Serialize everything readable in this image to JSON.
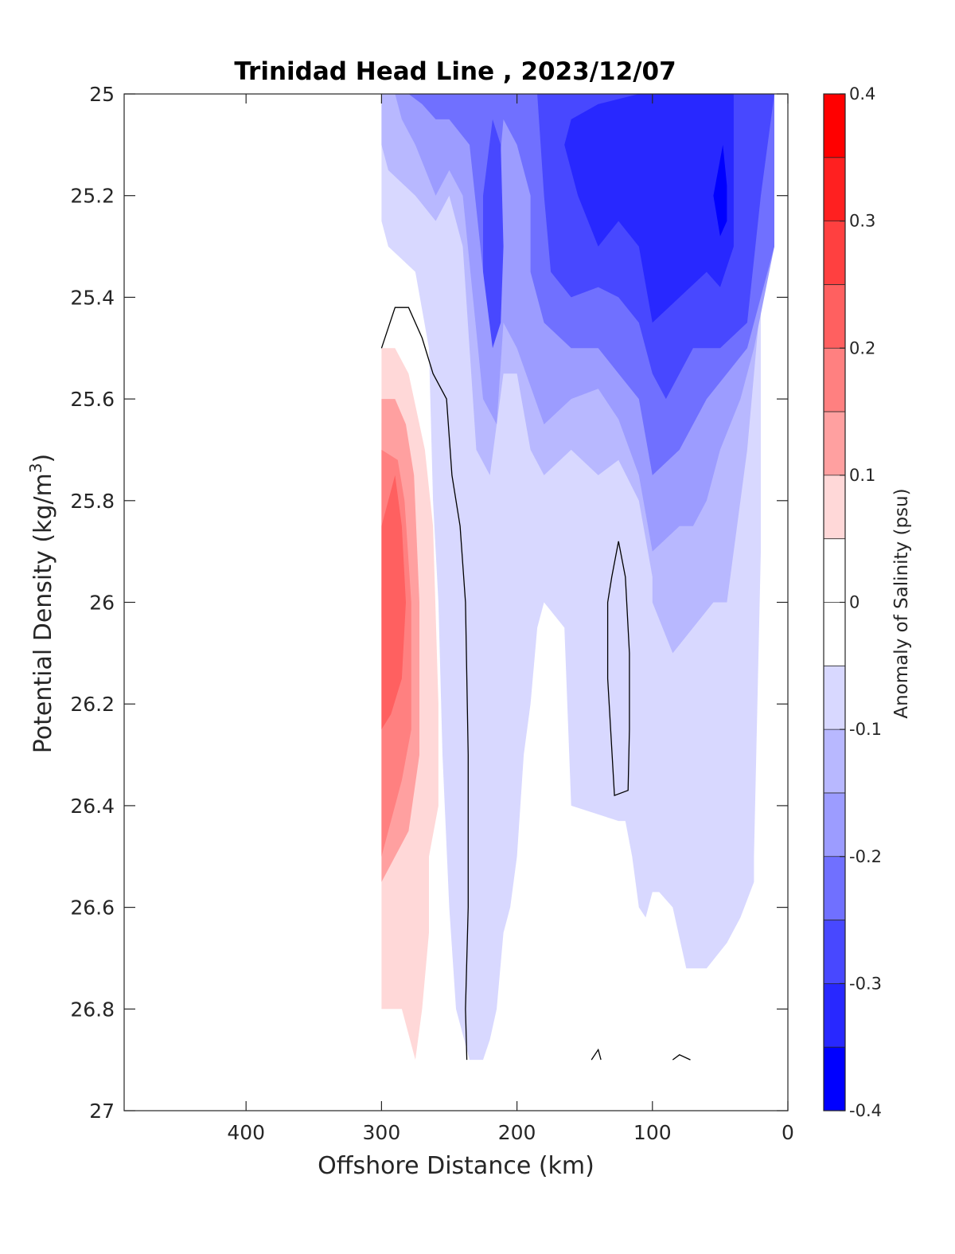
{
  "chart_data": {
    "type": "heatmap",
    "subtype": "filled-contour",
    "title": "Trinidad Head Line , 2023/12/07",
    "xlabel": "Offshore Distance (km)",
    "ylabel": "Potential Density (kg/m",
    "ylabel_superscript": "3",
    "ylabel_close": ")",
    "xlim": [
      490,
      0
    ],
    "x_reversed": true,
    "xticks": [
      400,
      300,
      200,
      100,
      0
    ],
    "xtick_labels": [
      "400",
      "300",
      "200",
      "100",
      "0"
    ],
    "ylim": [
      25,
      27
    ],
    "y_reversed": true,
    "yticks": [
      25,
      25.2,
      25.4,
      25.6,
      25.8,
      26,
      26.2,
      26.4,
      26.6,
      26.8,
      27
    ],
    "ytick_labels": [
      "25",
      "25.2",
      "25.4",
      "25.6",
      "25.8",
      "26",
      "26.2",
      "26.4",
      "26.6",
      "26.8",
      "27"
    ],
    "colorbar": {
      "label": "Anomaly of Salinity (psu)",
      "range": [
        -0.4,
        0.4
      ],
      "level_step": 0.05,
      "ticks": [
        0.4,
        0.3,
        0.2,
        0.1,
        0,
        -0.1,
        -0.2,
        -0.3,
        -0.4
      ],
      "tick_labels": [
        "0.4",
        "0.3",
        "0.2",
        "0.1",
        "0",
        "-0.1",
        "-0.2",
        "-0.3",
        "-0.4"
      ],
      "levels": [
        {
          "from": 0.35,
          "to": 0.4,
          "color": "#ff0000"
        },
        {
          "from": 0.3,
          "to": 0.35,
          "color": "#ff2020"
        },
        {
          "from": 0.25,
          "to": 0.3,
          "color": "#ff4040"
        },
        {
          "from": 0.2,
          "to": 0.25,
          "color": "#ff6060"
        },
        {
          "from": 0.15,
          "to": 0.2,
          "color": "#ff8080"
        },
        {
          "from": 0.1,
          "to": 0.15,
          "color": "#ffa0a0"
        },
        {
          "from": 0.05,
          "to": 0.1,
          "color": "#ffd8d8"
        },
        {
          "from": 0.0,
          "to": 0.05,
          "color": "#ffffff"
        },
        {
          "from": -0.05,
          "to": 0.0,
          "color": "#ffffff"
        },
        {
          "from": -0.1,
          "to": -0.05,
          "color": "#d8d8ff"
        },
        {
          "from": -0.15,
          "to": -0.1,
          "color": "#b8b8ff"
        },
        {
          "from": -0.2,
          "to": -0.15,
          "color": "#9c9cff"
        },
        {
          "from": -0.25,
          "to": -0.2,
          "color": "#7070ff"
        },
        {
          "from": -0.3,
          "to": -0.25,
          "color": "#4848ff"
        },
        {
          "from": -0.35,
          "to": -0.3,
          "color": "#2828ff"
        },
        {
          "from": -0.4,
          "to": -0.35,
          "color": "#0000ff"
        }
      ]
    },
    "data_extent": {
      "x_min": 10,
      "x_max": 300,
      "y_min": 25,
      "y_max": 26.9
    },
    "regions": [
      {
        "level": -0.075,
        "color": "#d8d8ff",
        "polygon": [
          [
            300,
            25
          ],
          [
            10,
            25
          ],
          [
            10,
            25.3
          ],
          [
            20,
            25.4
          ],
          [
            20,
            25.9
          ],
          [
            25,
            26.5
          ],
          [
            25,
            26.55
          ],
          [
            35,
            26.62
          ],
          [
            45,
            26.67
          ],
          [
            60,
            26.72
          ],
          [
            75,
            26.72
          ],
          [
            85,
            26.6
          ],
          [
            95,
            26.57
          ],
          [
            100,
            26.57
          ],
          [
            105,
            26.62
          ],
          [
            110,
            26.6
          ],
          [
            115,
            26.5
          ],
          [
            120,
            26.43
          ],
          [
            125,
            26.43
          ],
          [
            160,
            26.4
          ],
          [
            165,
            26.05
          ],
          [
            180,
            26.0
          ],
          [
            185,
            26.05
          ],
          [
            190,
            26.2
          ],
          [
            195,
            26.3
          ],
          [
            200,
            26.5
          ],
          [
            205,
            26.6
          ],
          [
            210,
            26.65
          ],
          [
            215,
            26.8
          ],
          [
            220,
            26.86
          ],
          [
            225,
            26.9
          ],
          [
            235,
            26.9
          ],
          [
            245,
            26.8
          ],
          [
            250,
            26.6
          ],
          [
            255,
            26.3
          ],
          [
            258,
            26.0
          ],
          [
            262,
            25.8
          ],
          [
            265,
            25.5
          ],
          [
            275,
            25.35
          ],
          [
            295,
            25.3
          ],
          [
            300,
            25.25
          ]
        ]
      },
      {
        "level": -0.125,
        "color": "#b8b8ff",
        "polygon": [
          [
            300,
            25
          ],
          [
            10,
            25
          ],
          [
            10,
            25.3
          ],
          [
            20,
            25.4
          ],
          [
            30,
            25.7
          ],
          [
            35,
            25.8
          ],
          [
            40,
            25.9
          ],
          [
            45,
            26.0
          ],
          [
            55,
            26.0
          ],
          [
            70,
            26.05
          ],
          [
            85,
            26.1
          ],
          [
            100,
            26.0
          ],
          [
            100,
            25.95
          ],
          [
            110,
            25.8
          ],
          [
            125,
            25.72
          ],
          [
            140,
            25.75
          ],
          [
            160,
            25.7
          ],
          [
            180,
            25.75
          ],
          [
            190,
            25.7
          ],
          [
            200,
            25.55
          ],
          [
            210,
            25.55
          ],
          [
            220,
            25.75
          ],
          [
            230,
            25.7
          ],
          [
            240,
            25.3
          ],
          [
            250,
            25.2
          ],
          [
            260,
            25.25
          ],
          [
            275,
            25.2
          ],
          [
            295,
            25.15
          ],
          [
            300,
            25.1
          ]
        ]
      },
      {
        "level": -0.175,
        "color": "#9c9cff",
        "polygon": [
          [
            290,
            25
          ],
          [
            10,
            25
          ],
          [
            10,
            25.3
          ],
          [
            25,
            25.5
          ],
          [
            35,
            25.6
          ],
          [
            50,
            25.7
          ],
          [
            60,
            25.8
          ],
          [
            70,
            25.85
          ],
          [
            80,
            25.85
          ],
          [
            100,
            25.9
          ],
          [
            110,
            25.75
          ],
          [
            125,
            25.64
          ],
          [
            140,
            25.58
          ],
          [
            160,
            25.6
          ],
          [
            180,
            25.65
          ],
          [
            200,
            25.5
          ],
          [
            210,
            25.45
          ],
          [
            215,
            25.65
          ],
          [
            225,
            25.6
          ],
          [
            240,
            25.2
          ],
          [
            250,
            25.15
          ],
          [
            260,
            25.2
          ],
          [
            275,
            25.1
          ],
          [
            285,
            25.05
          ]
        ]
      },
      {
        "level": -0.225,
        "color": "#7070ff",
        "polygon": [
          [
            280,
            25
          ],
          [
            10,
            25
          ],
          [
            10,
            25.3
          ],
          [
            30,
            25.5
          ],
          [
            45,
            25.55
          ],
          [
            60,
            25.6
          ],
          [
            80,
            25.7
          ],
          [
            100,
            25.75
          ],
          [
            110,
            25.6
          ],
          [
            125,
            25.55
          ],
          [
            140,
            25.5
          ],
          [
            160,
            25.5
          ],
          [
            180,
            25.45
          ],
          [
            190,
            25.35
          ],
          [
            190,
            25.2
          ],
          [
            200,
            25.1
          ],
          [
            210,
            25.05
          ],
          [
            215,
            25.2
          ],
          [
            225,
            25.35
          ],
          [
            235,
            25.1
          ],
          [
            250,
            25.05
          ],
          [
            260,
            25.05
          ],
          [
            270,
            25.02
          ]
        ]
      },
      {
        "level": -0.275,
        "color": "#4848ff",
        "polygon": [
          [
            185,
            25
          ],
          [
            10,
            25
          ],
          [
            20,
            25.2
          ],
          [
            30,
            25.45
          ],
          [
            50,
            25.5
          ],
          [
            70,
            25.5
          ],
          [
            90,
            25.6
          ],
          [
            100,
            25.55
          ],
          [
            110,
            25.45
          ],
          [
            125,
            25.4
          ],
          [
            140,
            25.38
          ],
          [
            160,
            25.4
          ],
          [
            175,
            25.35
          ],
          [
            180,
            25.2
          ]
        ]
      },
      {
        "level": -0.325,
        "color": "#2828ff",
        "polygon": [
          [
            160,
            25.05
          ],
          [
            140,
            25.02
          ],
          [
            110,
            25.0
          ],
          [
            40,
            25.0
          ],
          [
            40,
            25.3
          ],
          [
            50,
            25.38
          ],
          [
            60,
            25.35
          ],
          [
            80,
            25.4
          ],
          [
            100,
            25.45
          ],
          [
            110,
            25.3
          ],
          [
            125,
            25.25
          ],
          [
            140,
            25.3
          ],
          [
            155,
            25.2
          ],
          [
            165,
            25.1
          ]
        ]
      },
      {
        "level": -0.325,
        "color": "#4848ff",
        "polygon": [
          [
            225,
            25.2
          ],
          [
            218,
            25.05
          ],
          [
            212,
            25.1
          ],
          [
            210,
            25.3
          ],
          [
            212,
            25.45
          ],
          [
            218,
            25.5
          ],
          [
            225,
            25.35
          ]
        ]
      },
      {
        "level": -0.375,
        "color": "#0000ff",
        "polygon": [
          [
            55,
            25.2
          ],
          [
            48,
            25.1
          ],
          [
            45,
            25.18
          ],
          [
            45,
            25.25
          ],
          [
            50,
            25.28
          ]
        ]
      },
      {
        "level": 0.075,
        "color": "#ffd8d8",
        "polygon": [
          [
            300,
            25.5
          ],
          [
            290,
            25.5
          ],
          [
            280,
            25.55
          ],
          [
            268,
            25.7
          ],
          [
            262,
            25.85
          ],
          [
            258,
            26.2
          ],
          [
            258,
            26.4
          ],
          [
            265,
            26.5
          ],
          [
            265,
            26.65
          ],
          [
            270,
            26.8
          ],
          [
            275,
            26.9
          ],
          [
            285,
            26.8
          ],
          [
            300,
            26.8
          ]
        ]
      },
      {
        "level": 0.125,
        "color": "#ffa0a0",
        "polygon": [
          [
            300,
            25.6
          ],
          [
            290,
            25.6
          ],
          [
            282,
            25.65
          ],
          [
            276,
            25.75
          ],
          [
            272,
            26.0
          ],
          [
            272,
            26.3
          ],
          [
            280,
            26.45
          ],
          [
            290,
            26.5
          ],
          [
            300,
            26.55
          ]
        ]
      },
      {
        "level": 0.175,
        "color": "#ff8080",
        "polygon": [
          [
            300,
            25.7
          ],
          [
            288,
            25.72
          ],
          [
            283,
            25.8
          ],
          [
            278,
            26.0
          ],
          [
            278,
            26.25
          ],
          [
            285,
            26.35
          ],
          [
            295,
            26.45
          ],
          [
            300,
            26.5
          ]
        ]
      },
      {
        "level": 0.225,
        "color": "#ff6060",
        "polygon": [
          [
            300,
            25.85
          ],
          [
            290,
            25.75
          ],
          [
            285,
            25.85
          ],
          [
            282,
            26.0
          ],
          [
            285,
            26.15
          ],
          [
            293,
            26.22
          ],
          [
            300,
            26.25
          ]
        ]
      }
    ],
    "zero_contours": [
      [
        [
          300,
          25.5
        ],
        [
          290,
          25.42
        ],
        [
          280,
          25.42
        ],
        [
          270,
          25.48
        ],
        [
          262,
          25.55
        ],
        [
          252,
          25.6
        ],
        [
          248,
          25.75
        ],
        [
          242,
          25.85
        ],
        [
          238,
          26.0
        ],
        [
          236,
          26.3
        ],
        [
          236,
          26.6
        ],
        [
          238,
          26.8
        ],
        [
          237,
          26.9
        ]
      ],
      [
        [
          125,
          25.88
        ],
        [
          120,
          25.95
        ],
        [
          117,
          26.1
        ],
        [
          117,
          26.25
        ],
        [
          118,
          26.37
        ],
        [
          128,
          26.38
        ],
        [
          133,
          26.15
        ],
        [
          133,
          26.0
        ],
        [
          130,
          25.95
        ],
        [
          125,
          25.88
        ]
      ],
      [
        [
          145,
          26.9
        ],
        [
          140,
          26.88
        ],
        [
          138,
          26.9
        ]
      ],
      [
        [
          85,
          26.9
        ],
        [
          80,
          26.89
        ],
        [
          72,
          26.9
        ]
      ]
    ]
  }
}
